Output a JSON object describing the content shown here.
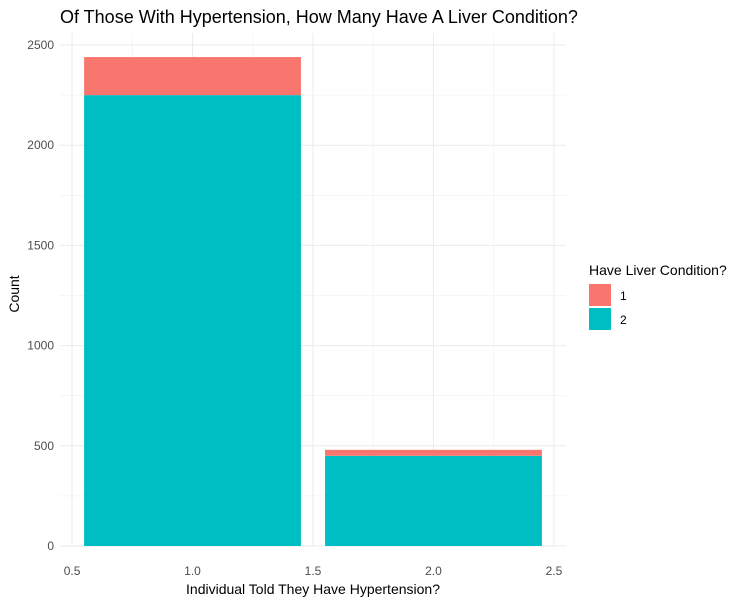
{
  "chart_data": {
    "type": "bar",
    "stacked": true,
    "title": "Of Those With Hypertension, How Many Have A Liver Condition?",
    "xlabel": "Individual Told They Have Hypertension?",
    "ylabel": "Count",
    "x": [
      1,
      2
    ],
    "bar_width": 0.9,
    "xlim": [
      0.45,
      2.55
    ],
    "ylim": [
      0,
      2560
    ],
    "x_ticks": [
      0.5,
      1.0,
      1.5,
      2.0,
      2.5
    ],
    "x_tick_labels": [
      "0.5",
      "1.0",
      "1.5",
      "2.0",
      "2.5"
    ],
    "y_ticks": [
      0,
      500,
      1000,
      1500,
      2000,
      2500
    ],
    "y_tick_labels": [
      "0",
      "500",
      "1000",
      "1500",
      "2000",
      "2500"
    ],
    "grid": true,
    "legend": {
      "title": "Have Liver Condition?",
      "placement": "right",
      "entries": [
        "1",
        "2"
      ]
    },
    "series": [
      {
        "name": "1",
        "color": "#F8766D",
        "values": [
          190,
          30
        ]
      },
      {
        "name": "2",
        "color": "#00BFC4",
        "values": [
          2250,
          450
        ]
      }
    ],
    "stack_order": [
      "2",
      "1"
    ]
  }
}
